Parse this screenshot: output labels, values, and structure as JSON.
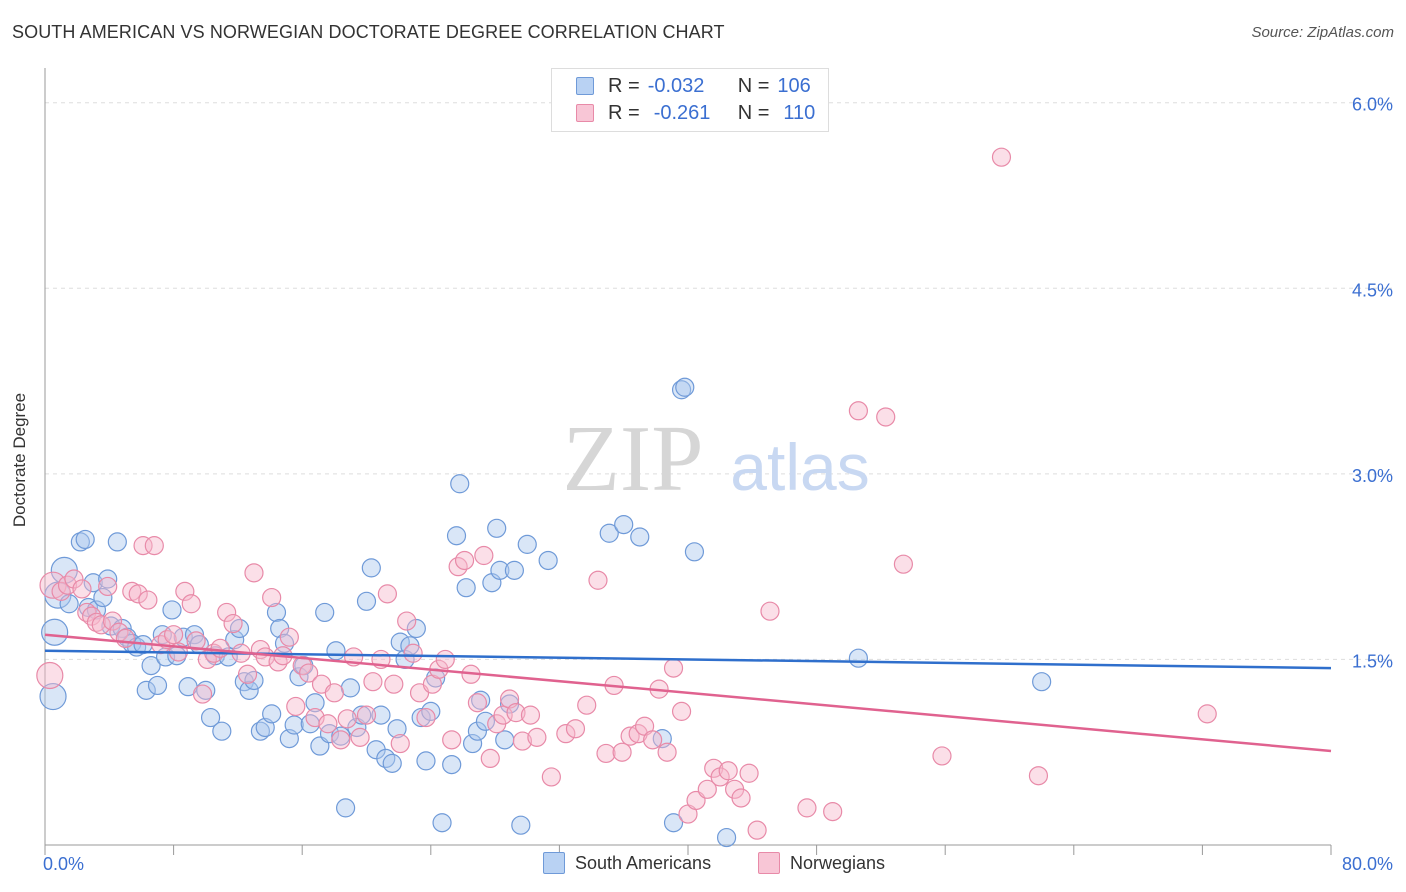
{
  "title": "SOUTH AMERICAN VS NORWEGIAN DOCTORATE DEGREE CORRELATION CHART",
  "source": "Source: ZipAtlas.com",
  "watermark": {
    "zip": "ZIP",
    "atlas": "atlas"
  },
  "legend_top": {
    "rows": [
      {
        "r_label": "R =",
        "r_value": "-0.032",
        "n_label": "N =",
        "n_value": "106"
      },
      {
        "r_label": "R =",
        "r_value": "-0.261",
        "n_label": "N =",
        "n_value": "110"
      }
    ]
  },
  "legend_bottom": {
    "series_a": "South Americans",
    "series_b": "Norwegians"
  },
  "colors": {
    "blue_fill": "#aac8ee",
    "blue_stroke": "#6f9ad8",
    "blue_line": "#2f6fcc",
    "pink_fill": "#f6b8cb",
    "pink_stroke": "#e88aa8",
    "pink_line": "#e0628f",
    "tick_text": "#3b6fd1",
    "grid": "#dddddd"
  },
  "chart_data": {
    "type": "scatter",
    "title": "SOUTH AMERICAN VS NORWEGIAN DOCTORATE DEGREE CORRELATION CHART",
    "xlabel": "",
    "ylabel": "Doctorate Degree",
    "xlim": [
      0,
      80
    ],
    "ylim": [
      0,
      6.2
    ],
    "x_tick_labels": [
      "0.0%",
      "80.0%"
    ],
    "y_ticks": [
      1.5,
      3.0,
      4.5,
      6.0
    ],
    "y_tick_labels": [
      "1.5%",
      "3.0%",
      "4.5%",
      "6.0%"
    ],
    "series": [
      {
        "name": "South Americans",
        "r": -0.032,
        "n": 106,
        "trend": {
          "x": [
            0,
            80
          ],
          "y": [
            1.57,
            1.43
          ]
        },
        "points": [
          {
            "x": 0.5,
            "y": 1.2,
            "big": true
          },
          {
            "x": 0.6,
            "y": 1.72,
            "big": true
          },
          {
            "x": 0.8,
            "y": 2.02,
            "big": true
          },
          {
            "x": 1.2,
            "y": 2.22,
            "big": true
          },
          {
            "x": 1.5,
            "y": 1.95
          },
          {
            "x": 2.2,
            "y": 2.45
          },
          {
            "x": 2.5,
            "y": 2.47
          },
          {
            "x": 2.7,
            "y": 1.92
          },
          {
            "x": 3.0,
            "y": 2.12
          },
          {
            "x": 3.2,
            "y": 1.9
          },
          {
            "x": 3.6,
            "y": 2.0
          },
          {
            "x": 3.9,
            "y": 2.15
          },
          {
            "x": 4.1,
            "y": 1.77
          },
          {
            "x": 4.5,
            "y": 2.45
          },
          {
            "x": 4.8,
            "y": 1.75
          },
          {
            "x": 5.1,
            "y": 1.68
          },
          {
            "x": 5.4,
            "y": 1.63
          },
          {
            "x": 5.7,
            "y": 1.6
          },
          {
            "x": 6.1,
            "y": 1.62
          },
          {
            "x": 6.3,
            "y": 1.25
          },
          {
            "x": 6.6,
            "y": 1.45
          },
          {
            "x": 7.0,
            "y": 1.29
          },
          {
            "x": 7.3,
            "y": 1.7
          },
          {
            "x": 7.5,
            "y": 1.52
          },
          {
            "x": 7.9,
            "y": 1.9
          },
          {
            "x": 8.2,
            "y": 1.53
          },
          {
            "x": 8.6,
            "y": 1.68
          },
          {
            "x": 8.9,
            "y": 1.28
          },
          {
            "x": 9.3,
            "y": 1.7
          },
          {
            "x": 9.6,
            "y": 1.62
          },
          {
            "x": 10.0,
            "y": 1.25
          },
          {
            "x": 10.3,
            "y": 1.03
          },
          {
            "x": 10.6,
            "y": 1.53
          },
          {
            "x": 11.0,
            "y": 0.92
          },
          {
            "x": 11.4,
            "y": 1.52
          },
          {
            "x": 11.8,
            "y": 1.66
          },
          {
            "x": 12.1,
            "y": 1.75
          },
          {
            "x": 12.4,
            "y": 1.32
          },
          {
            "x": 12.7,
            "y": 1.25
          },
          {
            "x": 13.0,
            "y": 1.33
          },
          {
            "x": 13.4,
            "y": 0.92
          },
          {
            "x": 13.7,
            "y": 0.95
          },
          {
            "x": 14.1,
            "y": 1.06
          },
          {
            "x": 14.4,
            "y": 1.88
          },
          {
            "x": 14.6,
            "y": 1.75
          },
          {
            "x": 14.9,
            "y": 1.63
          },
          {
            "x": 15.2,
            "y": 0.86
          },
          {
            "x": 15.5,
            "y": 0.97
          },
          {
            "x": 15.8,
            "y": 1.36
          },
          {
            "x": 16.1,
            "y": 1.45
          },
          {
            "x": 16.5,
            "y": 0.98
          },
          {
            "x": 16.8,
            "y": 1.15
          },
          {
            "x": 17.1,
            "y": 0.8
          },
          {
            "x": 17.4,
            "y": 1.88
          },
          {
            "x": 17.7,
            "y": 0.9
          },
          {
            "x": 18.1,
            "y": 1.57
          },
          {
            "x": 18.4,
            "y": 0.88
          },
          {
            "x": 18.7,
            "y": 0.3
          },
          {
            "x": 19.0,
            "y": 1.27
          },
          {
            "x": 19.4,
            "y": 0.95
          },
          {
            "x": 19.7,
            "y": 1.05
          },
          {
            "x": 20.0,
            "y": 1.97
          },
          {
            "x": 20.3,
            "y": 2.24
          },
          {
            "x": 20.6,
            "y": 0.77
          },
          {
            "x": 20.9,
            "y": 1.05
          },
          {
            "x": 21.2,
            "y": 0.7
          },
          {
            "x": 21.6,
            "y": 0.66
          },
          {
            "x": 21.9,
            "y": 0.94
          },
          {
            "x": 22.1,
            "y": 1.64
          },
          {
            "x": 22.4,
            "y": 1.5
          },
          {
            "x": 22.7,
            "y": 1.61
          },
          {
            "x": 23.1,
            "y": 1.75
          },
          {
            "x": 23.4,
            "y": 1.03
          },
          {
            "x": 23.7,
            "y": 0.68
          },
          {
            "x": 24.0,
            "y": 1.08
          },
          {
            "x": 24.3,
            "y": 1.35
          },
          {
            "x": 24.7,
            "y": 0.18
          },
          {
            "x": 25.3,
            "y": 0.65
          },
          {
            "x": 25.6,
            "y": 2.5
          },
          {
            "x": 25.8,
            "y": 2.92
          },
          {
            "x": 26.2,
            "y": 2.08
          },
          {
            "x": 26.6,
            "y": 0.82
          },
          {
            "x": 26.9,
            "y": 0.92
          },
          {
            "x": 27.1,
            "y": 1.17
          },
          {
            "x": 27.4,
            "y": 1.0
          },
          {
            "x": 27.8,
            "y": 2.12
          },
          {
            "x": 28.1,
            "y": 2.56
          },
          {
            "x": 28.3,
            "y": 2.22
          },
          {
            "x": 28.6,
            "y": 0.85
          },
          {
            "x": 28.9,
            "y": 1.14
          },
          {
            "x": 29.2,
            "y": 2.22
          },
          {
            "x": 29.6,
            "y": 0.16
          },
          {
            "x": 30.0,
            "y": 2.43
          },
          {
            "x": 31.3,
            "y": 2.3
          },
          {
            "x": 35.1,
            "y": 2.52
          },
          {
            "x": 36.0,
            "y": 2.59
          },
          {
            "x": 37.0,
            "y": 2.49
          },
          {
            "x": 38.4,
            "y": 0.86
          },
          {
            "x": 39.1,
            "y": 0.18
          },
          {
            "x": 39.6,
            "y": 3.68
          },
          {
            "x": 39.8,
            "y": 3.7
          },
          {
            "x": 40.4,
            "y": 2.37
          },
          {
            "x": 42.4,
            "y": 0.06
          },
          {
            "x": 50.6,
            "y": 1.51
          },
          {
            "x": 62.0,
            "y": 1.32
          }
        ]
      },
      {
        "name": "Norwegians",
        "r": -0.261,
        "n": 110,
        "trend": {
          "x": [
            0,
            80
          ],
          "y": [
            1.7,
            0.76
          ]
        },
        "points": [
          {
            "x": 0.3,
            "y": 1.37,
            "big": true
          },
          {
            "x": 0.5,
            "y": 2.1,
            "big": true
          },
          {
            "x": 1.0,
            "y": 2.05
          },
          {
            "x": 1.4,
            "y": 2.1
          },
          {
            "x": 1.8,
            "y": 2.15
          },
          {
            "x": 2.3,
            "y": 2.07
          },
          {
            "x": 2.6,
            "y": 1.88
          },
          {
            "x": 2.9,
            "y": 1.85
          },
          {
            "x": 3.2,
            "y": 1.8
          },
          {
            "x": 3.5,
            "y": 1.78
          },
          {
            "x": 3.9,
            "y": 2.09
          },
          {
            "x": 4.2,
            "y": 1.81
          },
          {
            "x": 4.6,
            "y": 1.72
          },
          {
            "x": 5.0,
            "y": 1.67
          },
          {
            "x": 5.4,
            "y": 2.05
          },
          {
            "x": 5.8,
            "y": 2.03
          },
          {
            "x": 6.1,
            "y": 2.42
          },
          {
            "x": 6.4,
            "y": 1.98
          },
          {
            "x": 6.8,
            "y": 2.42
          },
          {
            "x": 7.2,
            "y": 1.62
          },
          {
            "x": 7.6,
            "y": 1.66
          },
          {
            "x": 8.0,
            "y": 1.7
          },
          {
            "x": 8.3,
            "y": 1.56
          },
          {
            "x": 8.7,
            "y": 2.05
          },
          {
            "x": 9.1,
            "y": 1.95
          },
          {
            "x": 9.4,
            "y": 1.65
          },
          {
            "x": 9.8,
            "y": 1.22
          },
          {
            "x": 10.1,
            "y": 1.5
          },
          {
            "x": 10.5,
            "y": 1.55
          },
          {
            "x": 10.9,
            "y": 1.59
          },
          {
            "x": 11.3,
            "y": 1.88
          },
          {
            "x": 11.7,
            "y": 1.79
          },
          {
            "x": 12.2,
            "y": 1.55
          },
          {
            "x": 12.6,
            "y": 1.38
          },
          {
            "x": 13.0,
            "y": 2.2
          },
          {
            "x": 13.4,
            "y": 1.58
          },
          {
            "x": 13.7,
            "y": 1.52
          },
          {
            "x": 14.1,
            "y": 2.0
          },
          {
            "x": 14.5,
            "y": 1.48
          },
          {
            "x": 14.8,
            "y": 1.53
          },
          {
            "x": 15.2,
            "y": 1.68
          },
          {
            "x": 15.6,
            "y": 1.12
          },
          {
            "x": 16.0,
            "y": 1.45
          },
          {
            "x": 16.4,
            "y": 1.39
          },
          {
            "x": 16.8,
            "y": 1.03
          },
          {
            "x": 17.2,
            "y": 1.3
          },
          {
            "x": 17.6,
            "y": 0.98
          },
          {
            "x": 18.0,
            "y": 1.23
          },
          {
            "x": 18.4,
            "y": 0.85
          },
          {
            "x": 18.8,
            "y": 1.02
          },
          {
            "x": 19.2,
            "y": 1.52
          },
          {
            "x": 19.6,
            "y": 0.87
          },
          {
            "x": 20.0,
            "y": 1.05
          },
          {
            "x": 20.4,
            "y": 1.32
          },
          {
            "x": 20.9,
            "y": 1.5
          },
          {
            "x": 21.3,
            "y": 2.03
          },
          {
            "x": 21.7,
            "y": 1.3
          },
          {
            "x": 22.1,
            "y": 0.82
          },
          {
            "x": 22.5,
            "y": 1.81
          },
          {
            "x": 22.9,
            "y": 1.55
          },
          {
            "x": 23.3,
            "y": 1.23
          },
          {
            "x": 23.7,
            "y": 1.03
          },
          {
            "x": 24.1,
            "y": 1.3
          },
          {
            "x": 24.5,
            "y": 1.42
          },
          {
            "x": 24.9,
            "y": 1.5
          },
          {
            "x": 25.3,
            "y": 0.85
          },
          {
            "x": 25.7,
            "y": 2.25
          },
          {
            "x": 26.1,
            "y": 2.3
          },
          {
            "x": 26.5,
            "y": 1.38
          },
          {
            "x": 26.9,
            "y": 1.15
          },
          {
            "x": 27.3,
            "y": 2.34
          },
          {
            "x": 27.7,
            "y": 0.7
          },
          {
            "x": 28.1,
            "y": 0.98
          },
          {
            "x": 28.5,
            "y": 1.05
          },
          {
            "x": 28.9,
            "y": 1.18
          },
          {
            "x": 29.3,
            "y": 1.07
          },
          {
            "x": 29.7,
            "y": 0.84
          },
          {
            "x": 30.2,
            "y": 1.05
          },
          {
            "x": 30.6,
            "y": 0.87
          },
          {
            "x": 31.5,
            "y": 0.55
          },
          {
            "x": 32.4,
            "y": 0.9
          },
          {
            "x": 33.0,
            "y": 0.94
          },
          {
            "x": 33.7,
            "y": 1.13
          },
          {
            "x": 34.4,
            "y": 2.14
          },
          {
            "x": 34.9,
            "y": 0.74
          },
          {
            "x": 35.4,
            "y": 1.29
          },
          {
            "x": 35.9,
            "y": 0.75
          },
          {
            "x": 36.4,
            "y": 0.88
          },
          {
            "x": 36.9,
            "y": 0.9
          },
          {
            "x": 37.3,
            "y": 0.96
          },
          {
            "x": 37.8,
            "y": 0.85
          },
          {
            "x": 38.2,
            "y": 1.26
          },
          {
            "x": 38.7,
            "y": 0.75
          },
          {
            "x": 39.1,
            "y": 1.43
          },
          {
            "x": 39.6,
            "y": 1.08
          },
          {
            "x": 40.0,
            "y": 0.25
          },
          {
            "x": 40.5,
            "y": 0.36
          },
          {
            "x": 41.2,
            "y": 0.45
          },
          {
            "x": 41.6,
            "y": 0.62
          },
          {
            "x": 42.0,
            "y": 0.55
          },
          {
            "x": 42.5,
            "y": 0.6
          },
          {
            "x": 42.9,
            "y": 0.45
          },
          {
            "x": 43.3,
            "y": 0.38
          },
          {
            "x": 43.8,
            "y": 0.58
          },
          {
            "x": 44.3,
            "y": 0.12
          },
          {
            "x": 45.1,
            "y": 1.89
          },
          {
            "x": 47.4,
            "y": 0.3
          },
          {
            "x": 49.0,
            "y": 0.27
          },
          {
            "x": 50.6,
            "y": 3.51
          },
          {
            "x": 52.3,
            "y": 3.46
          },
          {
            "x": 53.4,
            "y": 2.27
          },
          {
            "x": 55.8,
            "y": 0.72
          },
          {
            "x": 59.5,
            "y": 5.56
          },
          {
            "x": 61.8,
            "y": 0.56
          },
          {
            "x": 72.3,
            "y": 1.06
          }
        ]
      }
    ]
  }
}
